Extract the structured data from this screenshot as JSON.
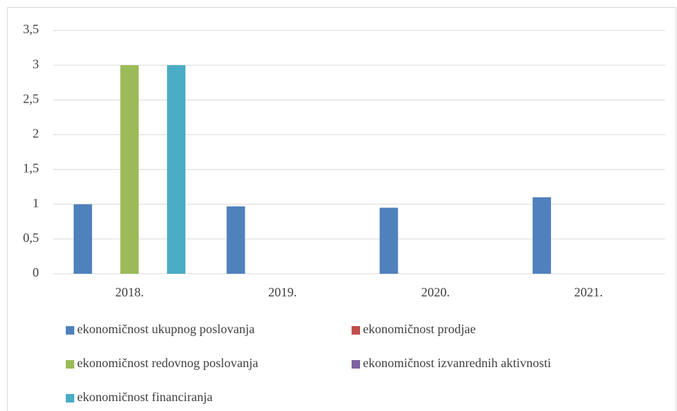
{
  "chart_data": {
    "type": "bar",
    "categories": [
      "2018.",
      "2019.",
      "2020.",
      "2021."
    ],
    "series": [
      {
        "name": "ekonomičnost ukupnog poslovanja",
        "color": "#4f81bd",
        "values": [
          1,
          0.97,
          0.95,
          1.1
        ]
      },
      {
        "name": "ekonomičnost prodjae",
        "color": "#c0504d",
        "values": [
          0,
          0,
          0,
          0
        ]
      },
      {
        "name": "ekonomičnost redovnog poslovanja",
        "color": "#9bbb59",
        "values": [
          3,
          0,
          0,
          0
        ]
      },
      {
        "name": "ekonomičnost izvanrednih aktivnosti",
        "color": "#8064a2",
        "values": [
          0,
          0,
          0,
          0
        ]
      },
      {
        "name": "ekonomičnost financiranja",
        "color": "#4bacc6",
        "values": [
          3,
          0,
          0,
          0
        ]
      }
    ],
    "ylim": [
      0,
      3.5
    ],
    "yticks": [
      0,
      {
        "value": 0.5,
        "label": "0,5"
      },
      1,
      {
        "value": 1.5,
        "label": "1,5"
      },
      2,
      {
        "value": 2.5,
        "label": "2,5"
      },
      3,
      {
        "value": 3.5,
        "label": "3,5"
      }
    ],
    "grid": true,
    "legend": "bottom"
  }
}
